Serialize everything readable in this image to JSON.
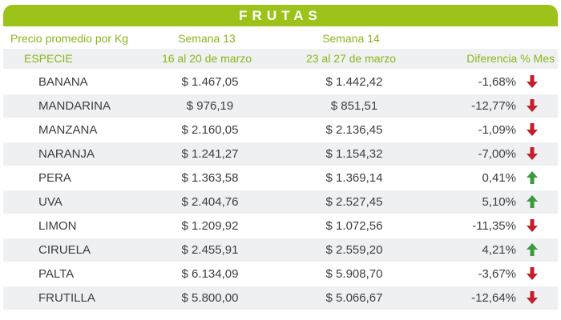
{
  "title": "FRUTAS",
  "header": {
    "price_label": "Precio promedio por Kg",
    "species_label": "ESPECIE",
    "week13_label": "Semana 13",
    "week13_range": "16 al 20 de marzo",
    "week14_label": "Semana 14",
    "week14_range": "23 al 27 de marzo",
    "diff_label": "Diferencia % Mes"
  },
  "colors": {
    "accent": "#9cc31a",
    "down": "#c41e2a",
    "up": "#3a9a3e",
    "stripe": "#eef0f2"
  },
  "rows": [
    {
      "name": "BANANA",
      "w13": "$ 1.467,05",
      "w14": "$ 1.442,42",
      "diff": "-1,68%",
      "trend": "down"
    },
    {
      "name": "MANDARINA",
      "w13": "$ 976,19",
      "w14": "$ 851,51",
      "diff": "-12,77%",
      "trend": "down"
    },
    {
      "name": "MANZANA",
      "w13": "$ 2.160,05",
      "w14": "$ 2.136,45",
      "diff": "-1,09%",
      "trend": "down"
    },
    {
      "name": "NARANJA",
      "w13": "$ 1.241,27",
      "w14": "$ 1.154,32",
      "diff": "-7,00%",
      "trend": "down"
    },
    {
      "name": "PERA",
      "w13": "$ 1.363,58",
      "w14": "$ 1.369,14",
      "diff": "0,41%",
      "trend": "up"
    },
    {
      "name": "UVA",
      "w13": "$ 2.404,76",
      "w14": "$ 2.527,45",
      "diff": "5,10%",
      "trend": "up"
    },
    {
      "name": "LIMON",
      "w13": "$ 1.209,92",
      "w14": "$ 1.072,56",
      "diff": "-11,35%",
      "trend": "down"
    },
    {
      "name": "CIRUELA",
      "w13": "$ 2.455,91",
      "w14": "$ 2.559,20",
      "diff": "4,21%",
      "trend": "up"
    },
    {
      "name": "PALTA",
      "w13": "$ 6.134,09",
      "w14": "$ 5.908,70",
      "diff": "-3,67%",
      "trend": "down"
    },
    {
      "name": "FRUTILLA",
      "w13": "$ 5.800,00",
      "w14": "$ 5.066,67",
      "diff": "-12,64%",
      "trend": "down"
    }
  ]
}
